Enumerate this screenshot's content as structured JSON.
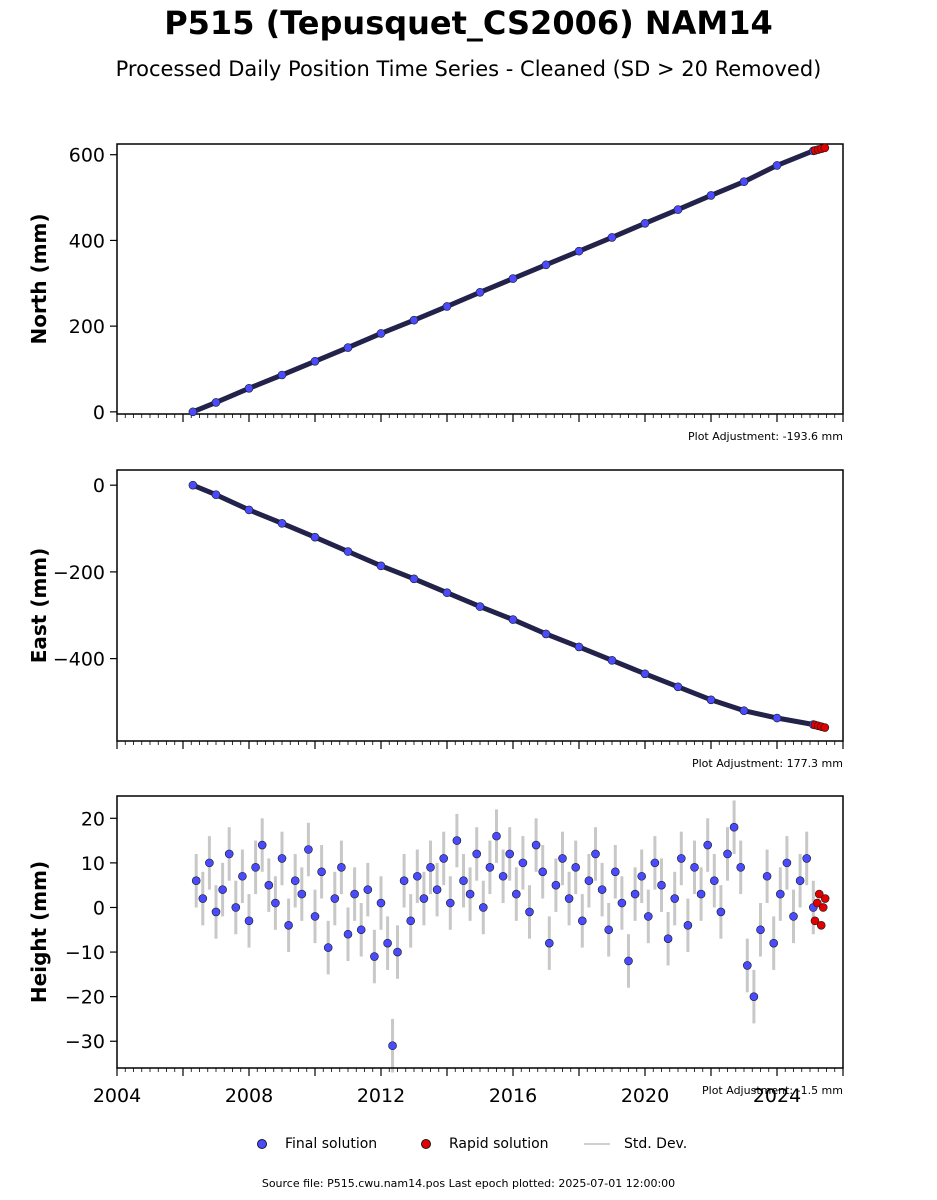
{
  "title": "P515 (Tepusquet_CS2006) NAM14",
  "subtitle": "Processed Daily Position Time Series - Cleaned (SD > 20 Removed)",
  "colors": {
    "final": "#4a4aff",
    "rapid": "#e00000",
    "stddev": "#c8c8c8",
    "marker_edge": "#1a1a1a"
  },
  "legend": {
    "final": "Final solution",
    "rapid": "Rapid solution",
    "stddev": "Std. Dev."
  },
  "footer": "Source file: P515.cwu.nam14.pos  Last epoch plotted: 2025-07-01 12:00:00",
  "chart_data": [
    {
      "type": "scatter",
      "ylabel": "North (mm)",
      "adjustment": "Plot Adjustment: -193.6 mm",
      "xlim": [
        2004,
        2026
      ],
      "ylim": [
        -5,
        625
      ],
      "yticks": [
        0,
        200,
        400,
        600
      ],
      "ytick_labels": [
        "0",
        "200",
        "400",
        "600"
      ],
      "xtick_labels": [],
      "series": [
        {
          "kind": "final",
          "x": [
            2006.3,
            2007,
            2008,
            2009,
            2010,
            2011,
            2012,
            2013,
            2014,
            2015,
            2016,
            2017,
            2018,
            2019,
            2020,
            2021,
            2022,
            2023,
            2024,
            2025.1
          ],
          "y": [
            0,
            22,
            55,
            86,
            118,
            150,
            183,
            214,
            246,
            279,
            311,
            343,
            375,
            407,
            440,
            472,
            505,
            537,
            575,
            609
          ]
        },
        {
          "kind": "rapid",
          "x": [
            2025.15,
            2025.25,
            2025.35,
            2025.45
          ],
          "y": [
            610,
            612,
            614,
            616
          ]
        }
      ]
    },
    {
      "type": "scatter",
      "ylabel": "East (mm)",
      "adjustment": "Plot Adjustment: 177.3 mm",
      "xlim": [
        2004,
        2026
      ],
      "ylim": [
        -590,
        35
      ],
      "yticks": [
        0,
        -200,
        -400
      ],
      "ytick_labels": [
        "0",
        "−200",
        "−400"
      ],
      "xtick_labels": [],
      "series": [
        {
          "kind": "final",
          "x": [
            2006.3,
            2007,
            2008,
            2009,
            2010,
            2011,
            2012,
            2013,
            2014,
            2015,
            2016,
            2017,
            2018,
            2019,
            2020,
            2021,
            2022,
            2023,
            2024,
            2025.1
          ],
          "y": [
            0,
            -22,
            -57,
            -88,
            -120,
            -153,
            -186,
            -216,
            -248,
            -280,
            -310,
            -343,
            -373,
            -404,
            -435,
            -465,
            -495,
            -520,
            -537,
            -552
          ]
        },
        {
          "kind": "rapid",
          "x": [
            2025.15,
            2025.25,
            2025.35,
            2025.45
          ],
          "y": [
            -553,
            -555,
            -557,
            -559
          ]
        }
      ]
    },
    {
      "type": "scatter",
      "ylabel": "Height (mm)",
      "adjustment": "Plot Adjustment: -1.5 mm",
      "xlim": [
        2004,
        2026
      ],
      "ylim": [
        -36,
        25
      ],
      "yticks": [
        20,
        10,
        0,
        -10,
        -20,
        -30
      ],
      "ytick_labels": [
        "20",
        "10",
        "0",
        "−10",
        "−20",
        "−30"
      ],
      "xtick_values": [
        2004,
        2008,
        2012,
        2016,
        2020,
        2024
      ],
      "xtick_labels": [
        "2004",
        "2008",
        "2012",
        "2016",
        "2020",
        "2024"
      ],
      "series": [
        {
          "kind": "final",
          "x": [
            2006.4,
            2006.6,
            2006.8,
            2007.0,
            2007.2,
            2007.4,
            2007.6,
            2007.8,
            2008.0,
            2008.2,
            2008.4,
            2008.6,
            2008.8,
            2009.0,
            2009.2,
            2009.4,
            2009.6,
            2009.8,
            2010.0,
            2010.2,
            2010.4,
            2010.6,
            2010.8,
            2011.0,
            2011.2,
            2011.4,
            2011.6,
            2011.8,
            2012.0,
            2012.2,
            2012.35,
            2012.5,
            2012.7,
            2012.9,
            2013.1,
            2013.3,
            2013.5,
            2013.7,
            2013.9,
            2014.1,
            2014.3,
            2014.5,
            2014.7,
            2014.9,
            2015.1,
            2015.3,
            2015.5,
            2015.7,
            2015.9,
            2016.1,
            2016.3,
            2016.5,
            2016.7,
            2016.9,
            2017.1,
            2017.3,
            2017.5,
            2017.7,
            2017.9,
            2018.1,
            2018.3,
            2018.5,
            2018.7,
            2018.9,
            2019.1,
            2019.3,
            2019.5,
            2019.7,
            2019.9,
            2020.1,
            2020.3,
            2020.5,
            2020.7,
            2020.9,
            2021.1,
            2021.3,
            2021.5,
            2021.7,
            2021.9,
            2022.1,
            2022.3,
            2022.5,
            2022.7,
            2022.9,
            2023.1,
            2023.3,
            2023.5,
            2023.7,
            2023.9,
            2024.1,
            2024.3,
            2024.5,
            2024.7,
            2024.9,
            2025.1
          ],
          "y": [
            6,
            2,
            10,
            -1,
            4,
            12,
            0,
            7,
            -3,
            9,
            14,
            5,
            1,
            11,
            -4,
            6,
            3,
            13,
            -2,
            8,
            -9,
            2,
            9,
            -6,
            3,
            -5,
            4,
            -11,
            1,
            -8,
            -31,
            -10,
            6,
            -3,
            7,
            2,
            9,
            4,
            11,
            1,
            15,
            6,
            3,
            12,
            0,
            9,
            16,
            7,
            12,
            3,
            10,
            -1,
            14,
            8,
            -8,
            5,
            11,
            2,
            9,
            -3,
            6,
            12,
            4,
            -5,
            8,
            1,
            -12,
            3,
            7,
            -2,
            10,
            5,
            -7,
            2,
            11,
            -4,
            9,
            3,
            14,
            6,
            -1,
            12,
            18,
            9,
            -13,
            -20,
            -5,
            7,
            -8,
            3,
            10,
            -2,
            6,
            11,
            0
          ]
        },
        {
          "kind": "rapid",
          "x": [
            2025.15,
            2025.22,
            2025.28,
            2025.34,
            2025.4,
            2025.46
          ],
          "y": [
            -3,
            1,
            3,
            -4,
            0,
            2
          ]
        }
      ]
    }
  ]
}
